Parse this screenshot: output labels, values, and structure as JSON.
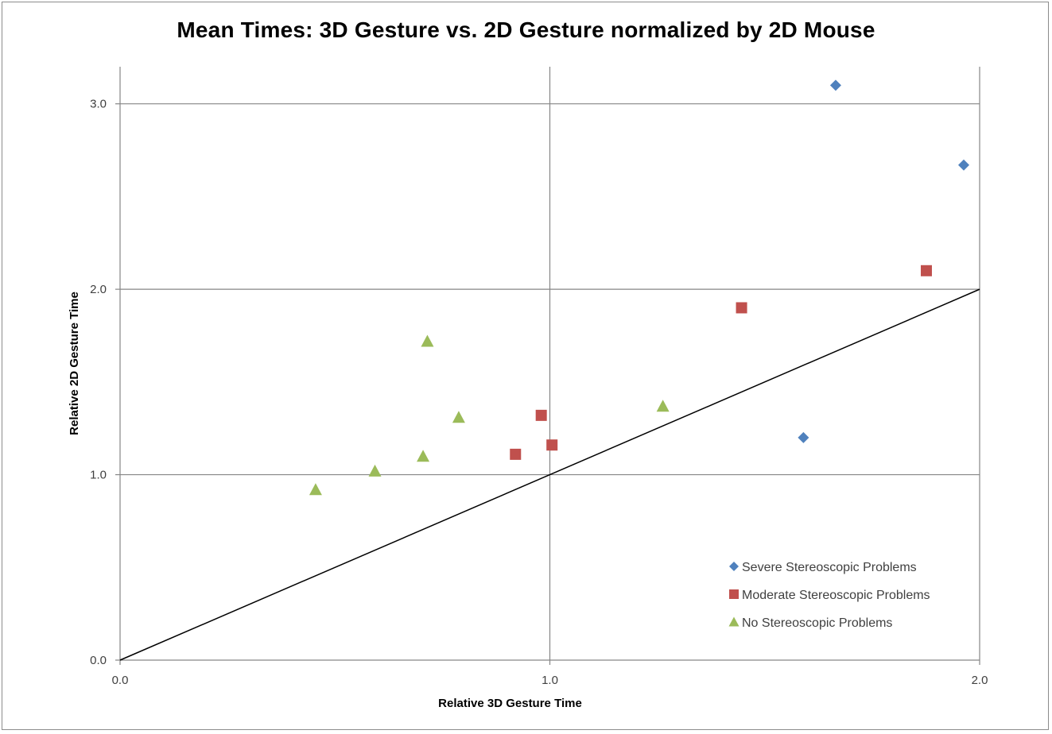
{
  "chart_data": {
    "type": "scatter",
    "title": "Mean Times: 3D Gesture vs. 2D Gesture normalized by 2D Mouse",
    "xlabel": "Relative 3D Gesture Time",
    "ylabel": "Relative 2D Gesture Time",
    "xlim": [
      0,
      2
    ],
    "ylim": [
      0,
      3.2
    ],
    "xticks": [
      "0.0",
      "1.0",
      "2.0"
    ],
    "yticks": [
      "0.0",
      "1.0",
      "2.0",
      "3.0"
    ],
    "grid": true,
    "legend_position": "bottom-right",
    "reference_line": {
      "x": [
        0,
        2
      ],
      "y": [
        0,
        2
      ],
      "color": "#000000"
    },
    "series": [
      {
        "name": "Severe Stereoscopic Problems",
        "marker": "diamond",
        "color": "#4f81bd",
        "points": [
          [
            1.665,
            3.1
          ],
          [
            1.963,
            2.67
          ],
          [
            1.59,
            1.2
          ]
        ]
      },
      {
        "name": "Moderate Stereoscopic Problems",
        "marker": "square",
        "color": "#c0504d",
        "points": [
          [
            1.876,
            2.1
          ],
          [
            1.446,
            1.9
          ],
          [
            0.98,
            1.32
          ],
          [
            1.005,
            1.16
          ],
          [
            0.92,
            1.11
          ]
        ]
      },
      {
        "name": "No Stereoscopic Problems",
        "marker": "triangle",
        "color": "#9bbb59",
        "points": [
          [
            0.715,
            1.72
          ],
          [
            0.788,
            1.31
          ],
          [
            0.705,
            1.1
          ],
          [
            1.263,
            1.37
          ],
          [
            0.593,
            1.02
          ],
          [
            0.455,
            0.92
          ]
        ]
      }
    ]
  }
}
